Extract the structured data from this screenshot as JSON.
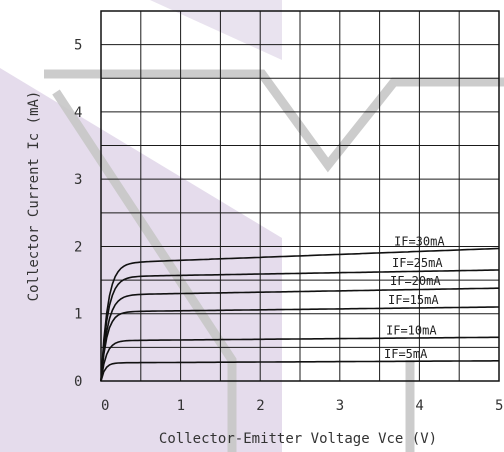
{
  "chart_data": {
    "type": "line",
    "title": "",
    "xlabel": "Collector-Emitter Voltage Vce (V)",
    "ylabel": "Collector Current Ic (mA)",
    "xlim": [
      0,
      5
    ],
    "ylim": [
      0,
      5.5
    ],
    "x_ticks": [
      "0",
      "1",
      "2",
      "3",
      "4",
      "5"
    ],
    "y_ticks": [
      "0",
      "1",
      "2",
      "3",
      "4",
      "5"
    ],
    "grid": true,
    "grid_step_x": 0.5,
    "grid_step_y": 0.5,
    "series": [
      {
        "name": "IF=30mA",
        "color": "#111111",
        "sat_voltage": 0.25,
        "values": [
          1.75,
          1.97
        ]
      },
      {
        "name": "IF=25mA",
        "color": "#111111",
        "sat_voltage": 0.25,
        "values": [
          1.55,
          1.65
        ]
      },
      {
        "name": "IF=20mA",
        "color": "#111111",
        "sat_voltage": 0.25,
        "values": [
          1.28,
          1.38
        ]
      },
      {
        "name": "IF=15mA",
        "color": "#111111",
        "sat_voltage": 0.22,
        "values": [
          1.03,
          1.1
        ]
      },
      {
        "name": "IF=10mA",
        "color": "#111111",
        "sat_voltage": 0.2,
        "values": [
          0.6,
          0.65
        ]
      },
      {
        "name": "IF=5mA",
        "color": "#111111",
        "sat_voltage": 0.15,
        "values": [
          0.27,
          0.3
        ]
      }
    ],
    "watermark_color": "#cfc0dc"
  }
}
